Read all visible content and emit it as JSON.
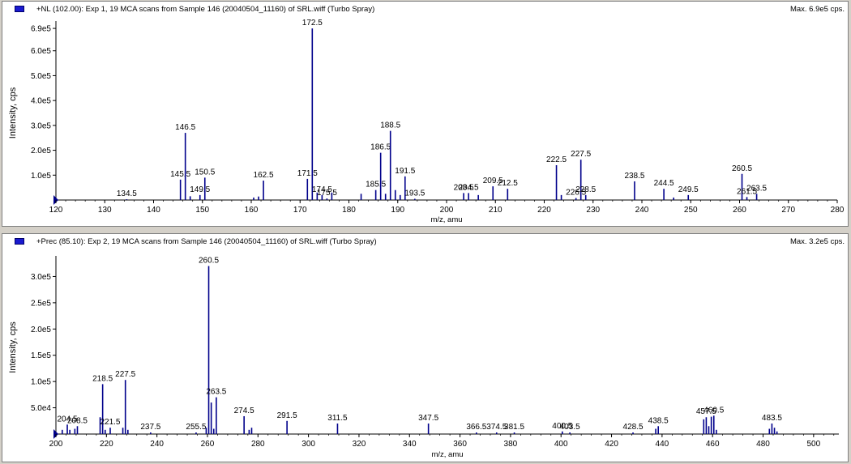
{
  "chart_data": [
    {
      "type": "bar",
      "title": "+NL (102.00): Exp 1, 19 MCA scans from Sample 146 (20040504_11160) of SRL.wiff (Turbo Spray)",
      "max_label": "Max. 6.9e5 cps.",
      "xlabel": "m/z, amu",
      "ylabel": "Intensity, cps",
      "xlim": [
        120,
        280
      ],
      "ylim": [
        0,
        700000
      ],
      "x_ticks": [
        "120",
        "130",
        "140",
        "150",
        "160",
        "170",
        "180",
        "190",
        "200",
        "210",
        "220",
        "230",
        "240",
        "250",
        "260",
        "270",
        "280"
      ],
      "y_ticks": [
        "1.0e5",
        "2.0e5",
        "3.0e5",
        "4.0e5",
        "5.0e5",
        "6.0e5",
        "6.9e5"
      ],
      "color": "#00008b",
      "peaks": [
        {
          "x": 134.5,
          "y": 3000,
          "label": "134.5"
        },
        {
          "x": 145.5,
          "y": 82000,
          "label": "145.5"
        },
        {
          "x": 146.5,
          "y": 270000,
          "label": "146.5"
        },
        {
          "x": 147.5,
          "y": 15000
        },
        {
          "x": 149.5,
          "y": 20000,
          "label": "149.5"
        },
        {
          "x": 150.5,
          "y": 90000,
          "label": "150.5"
        },
        {
          "x": 160.5,
          "y": 10000
        },
        {
          "x": 161.5,
          "y": 14000
        },
        {
          "x": 162.5,
          "y": 78000,
          "label": "162.5"
        },
        {
          "x": 171.5,
          "y": 85000,
          "label": "171.5"
        },
        {
          "x": 172.5,
          "y": 690000,
          "label": "172.5"
        },
        {
          "x": 173.5,
          "y": 30000
        },
        {
          "x": 175.5,
          "y": 6000,
          "label": "175.5"
        },
        {
          "x": 174.5,
          "y": 20000,
          "label": "174.5"
        },
        {
          "x": 176.5,
          "y": 30000
        },
        {
          "x": 182.5,
          "y": 25000
        },
        {
          "x": 185.5,
          "y": 40000,
          "label": "185.5"
        },
        {
          "x": 186.5,
          "y": 190000,
          "label": "186.5"
        },
        {
          "x": 187.5,
          "y": 25000
        },
        {
          "x": 188.5,
          "y": 278000,
          "label": "188.5"
        },
        {
          "x": 189.5,
          "y": 40000
        },
        {
          "x": 190.5,
          "y": 20000
        },
        {
          "x": 191.5,
          "y": 95000,
          "label": "191.5"
        },
        {
          "x": 193.5,
          "y": 5000,
          "label": "193.5"
        },
        {
          "x": 203.5,
          "y": 28000,
          "label": "203.5"
        },
        {
          "x": 204.5,
          "y": 28000,
          "label": "204.5"
        },
        {
          "x": 206.5,
          "y": 20000
        },
        {
          "x": 209.5,
          "y": 55000,
          "label": "209.5"
        },
        {
          "x": 212.5,
          "y": 45000,
          "label": "212.5"
        },
        {
          "x": 222.5,
          "y": 140000,
          "label": "222.5"
        },
        {
          "x": 223.5,
          "y": 20000
        },
        {
          "x": 226.5,
          "y": 8000,
          "label": "226.5"
        },
        {
          "x": 227.5,
          "y": 162000,
          "label": "227.5"
        },
        {
          "x": 228.5,
          "y": 20000,
          "label": "228.5"
        },
        {
          "x": 238.5,
          "y": 75000,
          "label": "238.5"
        },
        {
          "x": 244.5,
          "y": 45000,
          "label": "244.5"
        },
        {
          "x": 246.5,
          "y": 10000
        },
        {
          "x": 249.5,
          "y": 20000,
          "label": "249.5"
        },
        {
          "x": 260.5,
          "y": 105000,
          "label": "260.5"
        },
        {
          "x": 261.5,
          "y": 12000,
          "label": "261.5"
        },
        {
          "x": 263.5,
          "y": 25000,
          "label": "263.5"
        }
      ]
    },
    {
      "type": "bar",
      "title": "+Prec (85.10): Exp 2, 19 MCA scans from Sample 146 (20040504_11160) of SRL.wiff (Turbo Spray)",
      "max_label": "Max. 3.2e5 cps.",
      "xlabel": "m/z, amu",
      "ylabel": "Intensity, cps",
      "xlim": [
        200,
        510
      ],
      "ylim": [
        0,
        330000
      ],
      "x_ticks": [
        "200",
        "220",
        "240",
        "260",
        "280",
        "300",
        "320",
        "340",
        "360",
        "380",
        "400",
        "420",
        "440",
        "460",
        "480",
        "500"
      ],
      "y_ticks": [
        "5.0e4",
        "1.0e5",
        "1.5e5",
        "2.0e5",
        "2.5e5",
        "3.0e5"
      ],
      "color": "#00008b",
      "peaks": [
        {
          "x": 202.5,
          "y": 8000
        },
        {
          "x": 204.5,
          "y": 18000,
          "label": "204.5"
        },
        {
          "x": 205.5,
          "y": 8000
        },
        {
          "x": 207.5,
          "y": 10000
        },
        {
          "x": 208.5,
          "y": 15000,
          "label": "208.5"
        },
        {
          "x": 217.5,
          "y": 32000
        },
        {
          "x": 218.5,
          "y": 95000,
          "label": "218.5"
        },
        {
          "x": 219.5,
          "y": 8000
        },
        {
          "x": 221.5,
          "y": 12000,
          "label": "221.5"
        },
        {
          "x": 226.5,
          "y": 12000
        },
        {
          "x": 227.5,
          "y": 103000,
          "label": "227.5"
        },
        {
          "x": 228.5,
          "y": 8000
        },
        {
          "x": 237.5,
          "y": 3000,
          "label": "237.5"
        },
        {
          "x": 255.5,
          "y": 3000,
          "label": "255.5"
        },
        {
          "x": 259.5,
          "y": 12000
        },
        {
          "x": 260.5,
          "y": 320000,
          "label": "260.5"
        },
        {
          "x": 261.5,
          "y": 60000
        },
        {
          "x": 262.5,
          "y": 10000
        },
        {
          "x": 263.5,
          "y": 70000,
          "label": "263.5"
        },
        {
          "x": 274.5,
          "y": 34000,
          "label": "274.5"
        },
        {
          "x": 276.5,
          "y": 8000
        },
        {
          "x": 277.5,
          "y": 12000
        },
        {
          "x": 291.5,
          "y": 25000,
          "label": "291.5"
        },
        {
          "x": 311.5,
          "y": 20000,
          "label": "311.5"
        },
        {
          "x": 347.5,
          "y": 20000,
          "label": "347.5"
        },
        {
          "x": 366.5,
          "y": 3000,
          "label": "366.5"
        },
        {
          "x": 374.5,
          "y": 3000,
          "label": "374.5"
        },
        {
          "x": 381.5,
          "y": 3000,
          "label": "381.5"
        },
        {
          "x": 400.5,
          "y": 5000,
          "label": "400.5"
        },
        {
          "x": 403.5,
          "y": 3000,
          "label": "403.5"
        },
        {
          "x": 428.5,
          "y": 3000,
          "label": "428.5"
        },
        {
          "x": 437.5,
          "y": 10000
        },
        {
          "x": 438.5,
          "y": 15000,
          "label": "438.5"
        },
        {
          "x": 456.5,
          "y": 28000
        },
        {
          "x": 457.5,
          "y": 32000,
          "label": "457.5"
        },
        {
          "x": 458.5,
          "y": 15000
        },
        {
          "x": 459.5,
          "y": 33000
        },
        {
          "x": 460.5,
          "y": 35000,
          "label": "460.5"
        },
        {
          "x": 461.5,
          "y": 8000
        },
        {
          "x": 482.5,
          "y": 10000
        },
        {
          "x": 483.5,
          "y": 20000,
          "label": "483.5"
        },
        {
          "x": 484.5,
          "y": 12000
        },
        {
          "x": 485.5,
          "y": 5000
        }
      ]
    }
  ]
}
